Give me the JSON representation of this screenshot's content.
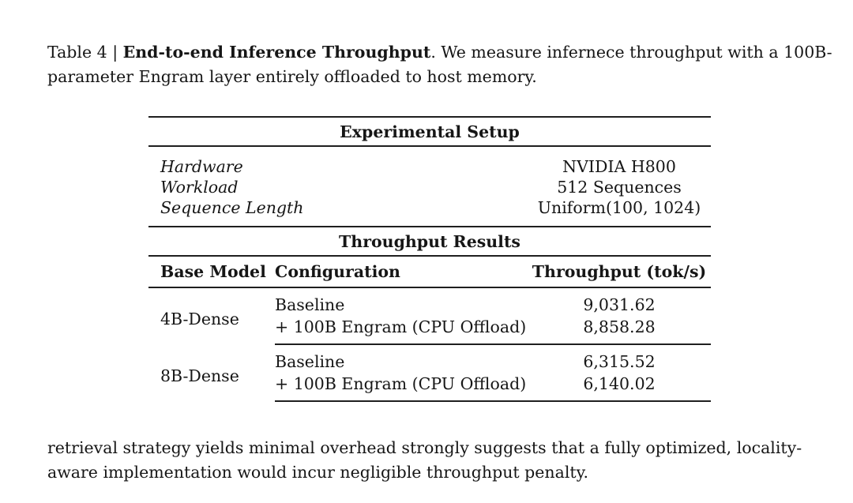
{
  "caption": {
    "prefix": "Table 4 | ",
    "title_bold": "End-to-end Inference Throughput",
    "line1_rest": ".  We measure infernece throughput with a 100B-",
    "line2": "parameter Engram layer entirely offloaded to host memory."
  },
  "table": {
    "setup": {
      "header": "Experimental Setup",
      "rows": [
        {
          "label": "Hardware",
          "value": "NVIDIA H800"
        },
        {
          "label": "Workload",
          "value": "512 Sequences"
        },
        {
          "label": "Sequence Length",
          "value": "Uniform(100, 1024)"
        }
      ]
    },
    "results": {
      "header": "Throughput Results",
      "columns": [
        "Base Model",
        "Configuration",
        "Throughput (tok/s)"
      ],
      "groups": [
        {
          "model": "4B-Dense",
          "rows": [
            {
              "config": "Baseline",
              "throughput": "9,031.62"
            },
            {
              "config": "+ 100B Engram (CPU Offload)",
              "throughput": "8,858.28"
            }
          ]
        },
        {
          "model": "8B-Dense",
          "rows": [
            {
              "config": "Baseline",
              "throughput": "6,315.52"
            },
            {
              "config": "+ 100B Engram (CPU Offload)",
              "throughput": "6,140.02"
            }
          ]
        }
      ]
    }
  },
  "body_text": {
    "line1": "retrieval strategy yields minimal overhead strongly suggests that a fully optimized, locality-",
    "line2": "aware implementation would incur negligible throughput penalty."
  }
}
